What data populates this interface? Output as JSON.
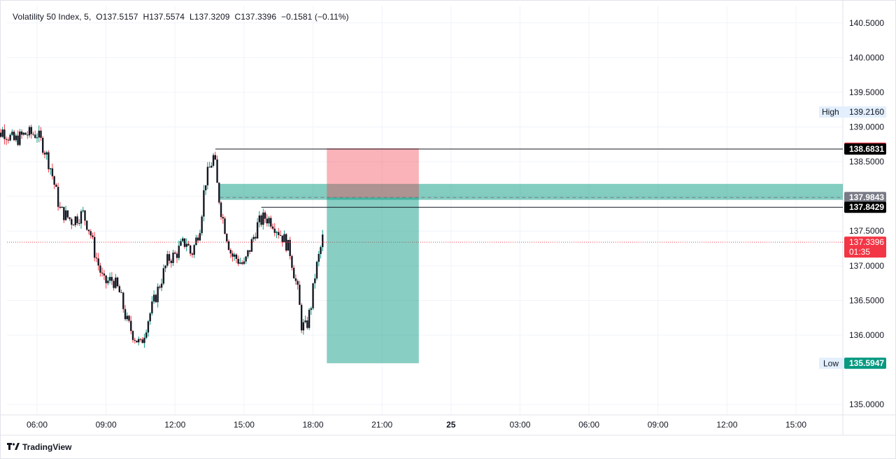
{
  "legend": {
    "symbol": "Volatility 50 Index",
    "interval": "5",
    "open_label": "O",
    "open": "137.5157",
    "high_label": "H",
    "high": "137.5574",
    "low_label": "L",
    "low": "137.3209",
    "close_label": "C",
    "close": "137.3396",
    "change": "−0.1581 (−0.11%)"
  },
  "brand": {
    "name": "TradingView",
    "icon": "tradingview-logo-icon"
  },
  "colors": {
    "up": "#089981",
    "down": "#f23645",
    "candle_body": "#131722",
    "grid": "#f0f3fa",
    "axis_text": "#131722",
    "profit_zone": "#089981",
    "stop_zone": "#f23645"
  },
  "chart_data": {
    "type": "candlestick",
    "title": "Volatility 50 Index, 5",
    "y_range": [
      134.85,
      140.75
    ],
    "y_ticks": [
      "140.5000",
      "140.0000",
      "139.5000",
      "139.0000",
      "138.5000",
      "137.5000",
      "137.0000",
      "136.5000",
      "136.0000",
      "135.0000"
    ],
    "x_ticks": [
      "06:00",
      "09:00",
      "12:00",
      "15:00",
      "18:00",
      "21:00",
      "25",
      "03:00",
      "06:00",
      "09:00",
      "12:00",
      "15:00"
    ],
    "bold_x_tick": "25",
    "grid": true,
    "price_path_close": [
      [
        4.0,
        138.75
      ],
      [
        4.5,
        138.95
      ],
      [
        5.0,
        138.8
      ],
      [
        5.5,
        138.9
      ],
      [
        6.0,
        138.9
      ],
      [
        6.3,
        138.7
      ],
      [
        6.6,
        138.4
      ],
      [
        7.0,
        137.8
      ],
      [
        7.5,
        137.65
      ],
      [
        8.0,
        137.75
      ],
      [
        8.3,
        137.5
      ],
      [
        8.5,
        137.2
      ],
      [
        8.9,
        136.75
      ],
      [
        9.3,
        136.8
      ],
      [
        9.6,
        136.6
      ],
      [
        9.9,
        136.2
      ],
      [
        10.2,
        136.0
      ],
      [
        10.5,
        135.85
      ],
      [
        10.8,
        136.2
      ],
      [
        11.1,
        136.5
      ],
      [
        11.4,
        136.8
      ],
      [
        11.7,
        137.1
      ],
      [
        12.0,
        137.15
      ],
      [
        12.3,
        137.3
      ],
      [
        12.5,
        137.35
      ],
      [
        12.7,
        137.15
      ],
      [
        12.9,
        137.35
      ],
      [
        13.1,
        137.6
      ],
      [
        13.3,
        138.2
      ],
      [
        13.5,
        138.4
      ],
      [
        13.7,
        138.6
      ],
      [
        13.85,
        138.1
      ],
      [
        14.0,
        137.8
      ],
      [
        14.2,
        137.5
      ],
      [
        14.45,
        137.15
      ],
      [
        14.7,
        137.1
      ],
      [
        15.0,
        137.0
      ],
      [
        15.3,
        137.3
      ],
      [
        15.6,
        137.6
      ],
      [
        15.9,
        137.7
      ],
      [
        16.2,
        137.65
      ],
      [
        16.5,
        137.5
      ],
      [
        16.8,
        137.35
      ],
      [
        17.0,
        137.2
      ],
      [
        17.2,
        136.85
      ],
      [
        17.35,
        136.6
      ],
      [
        17.5,
        136.15
      ],
      [
        17.7,
        136.1
      ],
      [
        17.9,
        136.4
      ],
      [
        18.1,
        136.9
      ],
      [
        18.3,
        137.2
      ],
      [
        18.45,
        137.45
      ]
    ],
    "highest_high": 139.216,
    "lowest_low": 135.5938,
    "last_price": 137.3396,
    "countdown": "01:35",
    "annotations": {
      "resistance_line": {
        "price": 138.6831,
        "label": "138.6831"
      },
      "support_line": {
        "price": 137.8429,
        "label": "137.8429"
      },
      "entry_zone": {
        "top": 138.18,
        "bottom": 137.95,
        "label": "137.9843"
      },
      "short_position": {
        "start_time": 18.6,
        "end_time": 22.6,
        "entry": 137.9843,
        "stop": 138.6949,
        "target": 135.5947,
        "stop_label": "138.6949",
        "target_label": "135.5947"
      }
    },
    "axis_labels": {
      "high_word": "High",
      "high_value": "139.2160",
      "low_word": "Low",
      "low_value": "135.5938",
      "last_value": "137.3396"
    }
  }
}
